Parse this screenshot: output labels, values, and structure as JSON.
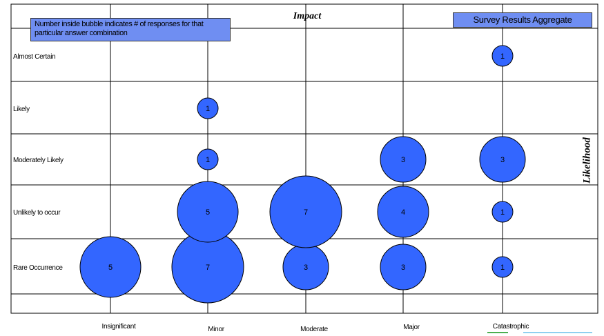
{
  "note": "Number inside bubble indicates # of responses for that particular answer combination",
  "badge": "Survey Results Aggregate",
  "chart_data": {
    "type": "scatter",
    "title": "Impact",
    "xlabel": "Impact",
    "ylabel": "Likelihood",
    "x_categories": [
      "Insignificant",
      "Minor",
      "Moderate",
      "Major",
      "Catastrophic"
    ],
    "y_categories": [
      "Rare Occurrence",
      "Unlikely to occur",
      "Moderately Likely",
      "Likely",
      "Almost Certain"
    ],
    "grid": true,
    "bubble_color": "#3366ff",
    "points": [
      {
        "x": "Insignificant",
        "y": "Rare Occurrence",
        "count": 5
      },
      {
        "x": "Minor",
        "y": "Rare Occurrence",
        "count": 7
      },
      {
        "x": "Minor",
        "y": "Unlikely to occur",
        "count": 5
      },
      {
        "x": "Minor",
        "y": "Moderately Likely",
        "count": 1
      },
      {
        "x": "Minor",
        "y": "Likely",
        "count": 1
      },
      {
        "x": "Moderate",
        "y": "Rare Occurrence",
        "count": 3
      },
      {
        "x": "Moderate",
        "y": "Unlikely to occur",
        "count": 7
      },
      {
        "x": "Major",
        "y": "Rare Occurrence",
        "count": 3
      },
      {
        "x": "Major",
        "y": "Unlikely to occur",
        "count": 4
      },
      {
        "x": "Major",
        "y": "Moderately Likely",
        "count": 3
      },
      {
        "x": "Catastrophic",
        "y": "Rare Occurrence",
        "count": 1
      },
      {
        "x": "Catastrophic",
        "y": "Unlikely to occur",
        "count": 1
      },
      {
        "x": "Catastrophic",
        "y": "Moderately Likely",
        "count": 3
      },
      {
        "x": "Catastrophic",
        "y": "Almost Certain",
        "count": 1
      }
    ]
  }
}
